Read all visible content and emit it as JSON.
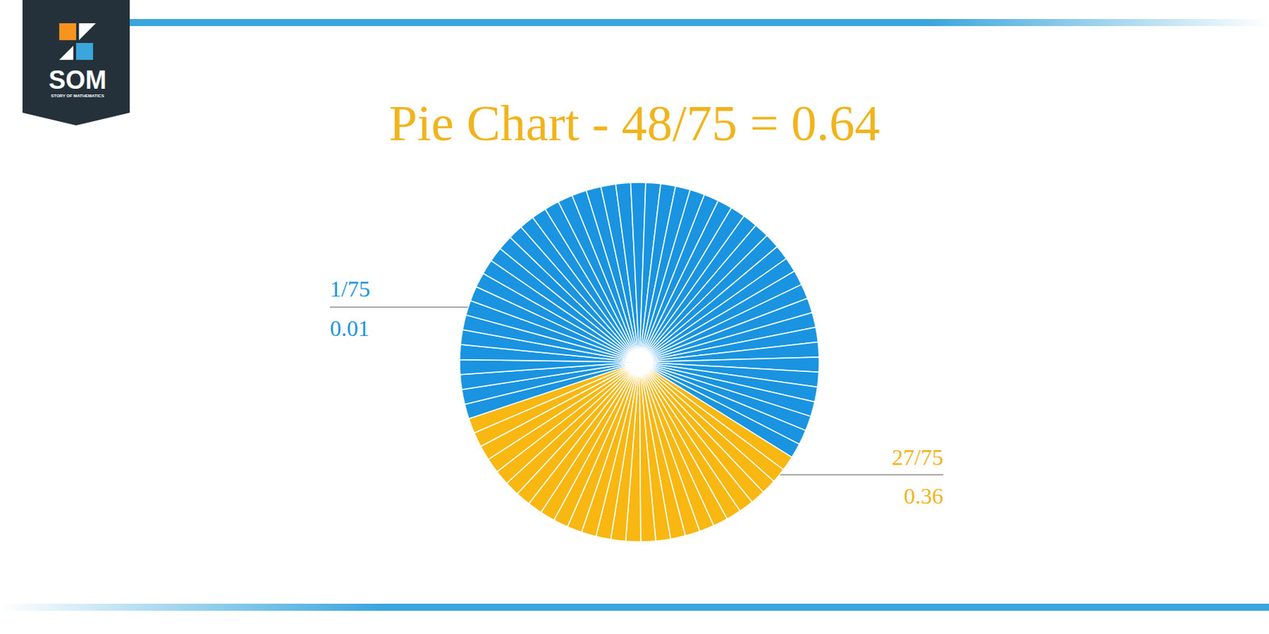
{
  "chart_data": {
    "type": "pie",
    "title": "Pie Chart - 48/75 = 0.64",
    "values": [
      1,
      1,
      1,
      1,
      1,
      1,
      1,
      1,
      1,
      1,
      1,
      1,
      1,
      1,
      1,
      1,
      1,
      1,
      1,
      1,
      1,
      1,
      1,
      1,
      1,
      1,
      1,
      1,
      1,
      1,
      1,
      1,
      1,
      1,
      1,
      1,
      1,
      1,
      1,
      1,
      1,
      1,
      1,
      1,
      1,
      1,
      1,
      1,
      1,
      1,
      1,
      1,
      1,
      1,
      1,
      1,
      1,
      1,
      1,
      1,
      1,
      1,
      1,
      1,
      1,
      1,
      1,
      1,
      1,
      1,
      1,
      1,
      1,
      1,
      1
    ],
    "colors": [
      "#1a94e0",
      "#1a94e0",
      "#1a94e0",
      "#1a94e0",
      "#1a94e0",
      "#1a94e0",
      "#1a94e0",
      "#1a94e0",
      "#1a94e0",
      "#1a94e0",
      "#1a94e0",
      "#1a94e0",
      "#1a94e0",
      "#1a94e0",
      "#1a94e0",
      "#1a94e0",
      "#1a94e0",
      "#1a94e0",
      "#1a94e0",
      "#1a94e0",
      "#1a94e0",
      "#1a94e0",
      "#1a94e0",
      "#1a94e0",
      "#1a94e0",
      "#1a94e0",
      "#1a94e0",
      "#1a94e0",
      "#1a94e0",
      "#1a94e0",
      "#1a94e0",
      "#1a94e0",
      "#1a94e0",
      "#1a94e0",
      "#1a94e0",
      "#1a94e0",
      "#1a94e0",
      "#1a94e0",
      "#1a94e0",
      "#1a94e0",
      "#1a94e0",
      "#1a94e0",
      "#1a94e0",
      "#1a94e0",
      "#1a94e0",
      "#1a94e0",
      "#1a94e0",
      "#1a94e0",
      "#f8b711",
      "#f8b711",
      "#f8b711",
      "#f8b711",
      "#f8b711",
      "#f8b711",
      "#f8b711",
      "#f8b711",
      "#f8b711",
      "#f8b711",
      "#f8b711",
      "#f8b711",
      "#f8b711",
      "#f8b711",
      "#f8b711",
      "#f8b711",
      "#f8b711",
      "#f8b711",
      "#f8b711",
      "#f8b711",
      "#f8b711",
      "#f8b711",
      "#f8b711",
      "#f8b711",
      "#f8b711",
      "#f8b711",
      "#f8b711"
    ],
    "annotations": [
      {
        "text": "1/75",
        "value": 0.01,
        "color": "#1a94e0"
      },
      {
        "text": "27/75",
        "value": 0.36,
        "color": "#f2b418"
      }
    ]
  },
  "logo": {
    "text": "SOM",
    "subtitle": "STORY OF MATHEMATICS"
  }
}
